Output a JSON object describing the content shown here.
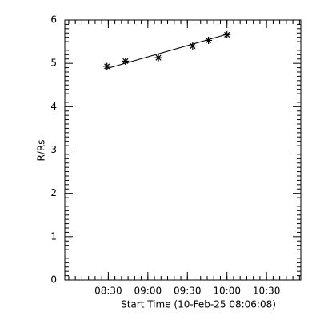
{
  "chart_data": {
    "type": "scatter",
    "x_label": "Start Time (10-Feb-25 08:06:08)",
    "y_label": "R/Rs",
    "x": [
      "08:29",
      "08:43",
      "09:08",
      "09:34",
      "09:46",
      "10:00"
    ],
    "values": [
      4.93,
      5.05,
      5.13,
      5.4,
      5.53,
      5.66
    ],
    "fit_line": {
      "x": [
        "08:29",
        "10:00"
      ],
      "values": [
        4.88,
        5.67
      ]
    },
    "color": "#000000",
    "xlim": [
      "07:57",
      "10:56"
    ],
    "xticks": [
      "08:30",
      "09:00",
      "09:30",
      "10:00",
      "10:30"
    ],
    "ylim": [
      0,
      6
    ],
    "yticks": [
      0,
      1,
      2,
      3,
      4,
      5,
      6
    ],
    "minor_ticks": {
      "x": 6,
      "y": 10
    }
  }
}
